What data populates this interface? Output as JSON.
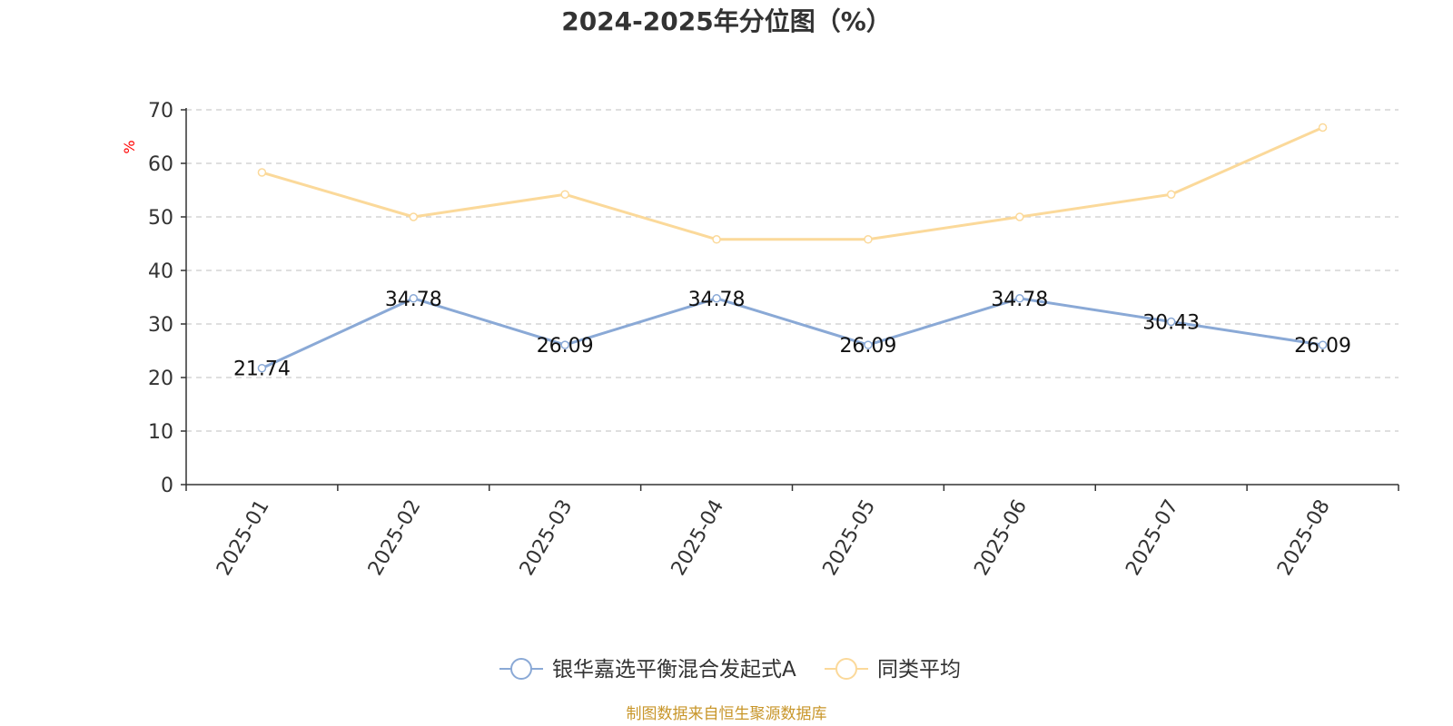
{
  "chart_data": {
    "type": "line",
    "title": "2024-2025年分位图（%）",
    "ylabel": "%",
    "ylim": [
      0,
      70
    ],
    "yticks": [
      0,
      10,
      20,
      30,
      40,
      50,
      60,
      70
    ],
    "grid": true,
    "legend_position": "bottom",
    "categories": [
      "2025-01",
      "2025-02",
      "2025-03",
      "2025-04",
      "2025-05",
      "2025-06",
      "2025-07",
      "2025-08"
    ],
    "series": [
      {
        "name": "银华嘉选平衡混合发起式A",
        "color": "#8aa9d6",
        "show_labels": true,
        "values": [
          21.74,
          34.78,
          26.09,
          34.78,
          26.09,
          34.78,
          30.43,
          26.09
        ],
        "labels": [
          "21.74",
          "34.78",
          "26.09",
          "34.78",
          "26.09",
          "34.78",
          "30.43",
          "26.09"
        ]
      },
      {
        "name": "同类平均",
        "color": "#fbd99a",
        "show_labels": false,
        "values": [
          58.3,
          50.0,
          54.2,
          45.8,
          45.8,
          50.0,
          54.2,
          66.7
        ]
      }
    ],
    "source": "制图数据来自恒生聚源数据库"
  }
}
